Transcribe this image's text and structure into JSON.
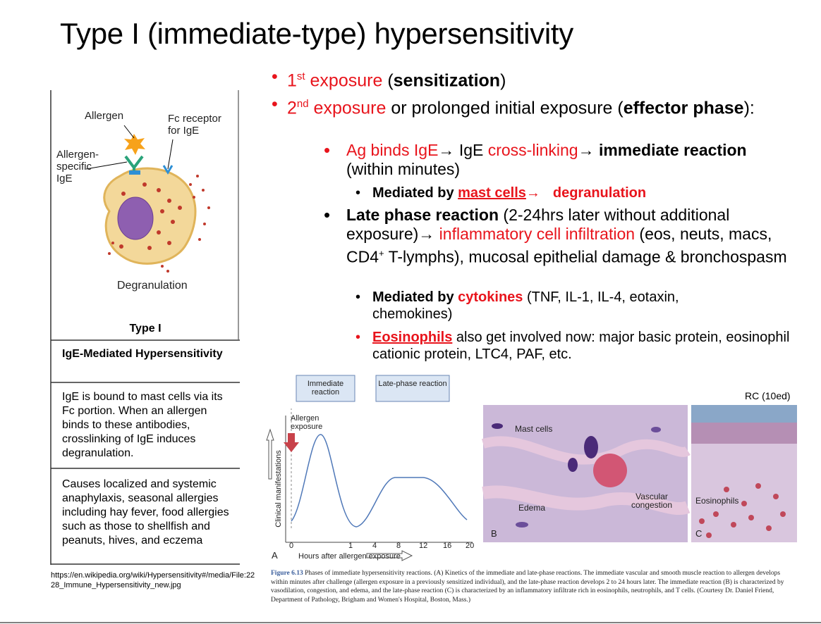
{
  "title": "Type I (immediate-type) hypersensitivity",
  "bullets": [
    [
      "1",
      "st",
      " exposure",
      " (",
      "sensitization",
      ")"
    ],
    [
      "2",
      "nd",
      " exposure",
      " or prolonged initial exposure (",
      "effector phase",
      "):"
    ]
  ],
  "sub_bullets": [
    [
      "Ag binds IgE",
      "→ ",
      "IgE ",
      "cross-linking",
      "→ ",
      "immediate reaction",
      " (within minutes)"
    ],
    [
      "Late phase reaction",
      " (2-24hrs later without additional exposure)",
      "→ ",
      "inflammatory cell infiltration",
      " (eos, neuts, macs, CD4",
      "+",
      " T-lymphs), mucosal epithelial damage & bronchospasm"
    ]
  ],
  "sub_sub_bullets": [
    [
      "Mediated by ",
      "mast cells",
      "→",
      "degranulation"
    ],
    [
      "Mediated by ",
      "cytokines",
      " (TNF, IL-1, IL-4, eotaxin, chemokines)"
    ],
    [
      "Eosinophils",
      " also get involved now: major basic protein, eosinophil cationic protein, LTC4, PAF, etc."
    ]
  ],
  "left_panel": {
    "diagram_labels": {
      "allergen": "Allergen",
      "fc_receptor": "Fc receptor for IgE",
      "specific_ige": "Allergen-specific IgE",
      "degranulation": "Degranulation"
    },
    "type": "Type I",
    "heading": "IgE-Mediated Hypersensitivity",
    "mechanism": "IgE is bound to mast cells via its Fc portion. When an allergen binds to these antibodies, crosslinking of IgE induces degranulation.",
    "effects": "Causes localized and systemic anaphylaxis, seasonal allergies including hay fever, food allergies such as those to shellfish and peanuts, hives, and eczema",
    "source": "https://en.wikipedia.org/wiki/Hypersensitivity#/media/File:2228_Immune_Hypersensitivity_new.jpg"
  },
  "figure": {
    "credit": "RC (10ed)",
    "phase_boxes": [
      "Immediate reaction",
      "Late-phase reaction"
    ],
    "allergen_label": "Allergen exposure",
    "y_label": "Clinical manifestations",
    "x_label": "Hours after allergen exposure",
    "x_ticks": [
      "0",
      "1",
      "4",
      "8",
      "12",
      "16",
      "20"
    ],
    "panel_letters": [
      "A",
      "B",
      "C"
    ],
    "photo_labels": [
      "Mast cells",
      "Vascular congestion",
      "Edema",
      "Eosinophils"
    ],
    "caption_label": "Figure 6.13",
    "caption": " Phases of immediate hypersensitivity reactions. (A) Kinetics of the immediate and late-phase reactions. The immediate vascular and smooth muscle reaction to allergen develops within minutes after challenge (allergen exposure in a previously sensitized individual), and the late-phase reaction develops 2 to 24 hours later. The immediate reaction (B) is characterized by vasodilation, congestion, and edema, and the late-phase reaction (C) is characterized by an inflammatory infiltrate rich in eosinophils, neutrophils, and T cells. (Courtesy Dr. Daniel Friend, Department of Pathology, Brigham and Women's Hospital, Boston, Mass.)"
  }
}
